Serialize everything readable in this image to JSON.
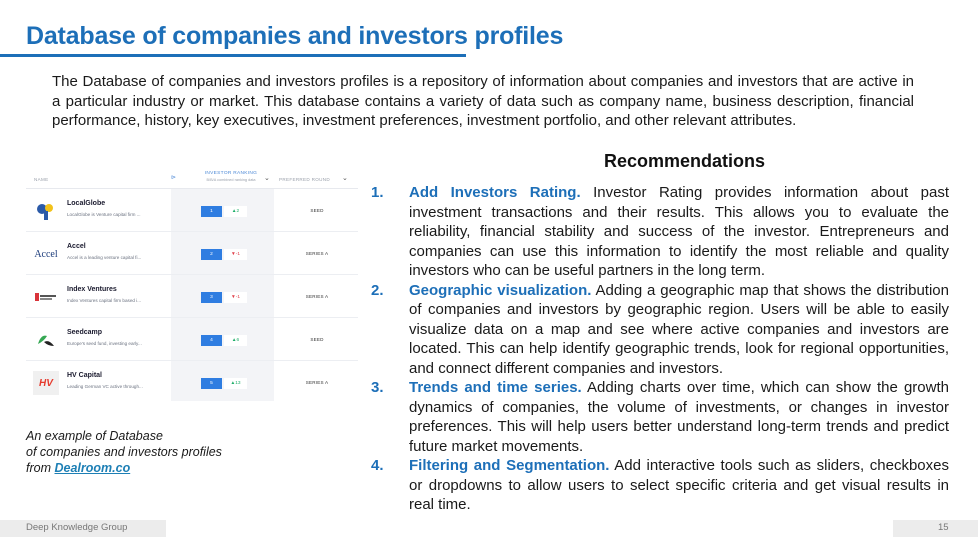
{
  "title": "Database of companies and investors profiles",
  "intro": "The Database of companies and investors profiles is a repository of information about companies and investors that are active in a particular industry or market. This database contains a variety of data such as company name, business description, financial performance, history, key executives, investment preferences, investment portfolio, and other relevant attributes.",
  "screenshot": {
    "header": {
      "name": "NAME",
      "investor_ranking": "INVESTOR RANKING",
      "ranking_sub": "B/B/A combined ranking data",
      "preferred_round": "PREFERRED ROUND",
      "filter_icon": "filter-icon",
      "chevron_icon": "chevron-down-icon"
    },
    "rows": [
      {
        "name": "LocalGlobe",
        "desc": "LocalGlobe is Venture capital firm ...",
        "logo": "LG",
        "logo_color": "#2b5aa8",
        "rank": "1",
        "change": "▲2",
        "dir": "up",
        "round": "SEED"
      },
      {
        "name": "Accel",
        "desc": "Accel is a leading venture capital fi...",
        "logo": "Accel",
        "logo_color": "#1a3a7a",
        "rank": "2",
        "change": "▼-1",
        "dir": "down",
        "round": "SERIES A"
      },
      {
        "name": "Index Ventures",
        "desc": "Index Ventures capital firm based i...",
        "logo": "Index",
        "logo_color": "#d9343a",
        "rank": "3",
        "change": "▼-1",
        "dir": "down",
        "round": "SERIES A"
      },
      {
        "name": "Seedcamp",
        "desc": "Europe's seed fund, investing early...",
        "logo": "SC",
        "logo_color": "#35a853",
        "rank": "4",
        "change": "▲6",
        "dir": "up",
        "round": "SEED"
      },
      {
        "name": "HV Capital",
        "desc": "Leading German VC active through...",
        "logo": "HV",
        "logo_color": "#e63b2e",
        "rank": "5",
        "change": "▲13",
        "dir": "up",
        "round": "SERIES A"
      }
    ]
  },
  "caption": {
    "line1": "An example of Database",
    "line2": "of companies and investors profiles",
    "from": "from ",
    "link": "Dealroom.co"
  },
  "recommendations": {
    "title": "Recommendations",
    "items": [
      {
        "num": "1.",
        "head": "Add Investors Rating.",
        "text": " Investor Rating provides information about past investment transactions and their results. This allows you to evaluate the reliability, financial stability and success of the investor. Entrepreneurs and companies can use this information to identify the most reliable and quality investors who can be useful partners in the long term."
      },
      {
        "num": "2.",
        "head": "Geographic visualization.",
        "text": " Adding a geographic map that shows the distribution of companies and investors by geographic region. Users will be able to easily visualize data on a map and see where active companies and investors are located. This can help identify geographic trends, look for regional opportunities, and connect different companies and investors."
      },
      {
        "num": "3.",
        "head": "Trends and time series.",
        "text": " Adding charts over time, which can show the growth dynamics of companies, the volume of investments, or changes in investor preferences. This will help users better understand long-term trends and predict future market movements."
      },
      {
        "num": "4.",
        "head": "Filtering and Segmentation.",
        "text": " Add interactive tools such as sliders, checkboxes or dropdowns to allow users to select specific criteria and get visual results in real time."
      }
    ]
  },
  "footer": {
    "brand": "Deep Knowledge Group",
    "page": "15"
  },
  "colors": {
    "accent": "#1d6fb8",
    "rank_blue": "#2f7de1",
    "up_green": "#1fae6a",
    "down_red": "#e0414b"
  }
}
